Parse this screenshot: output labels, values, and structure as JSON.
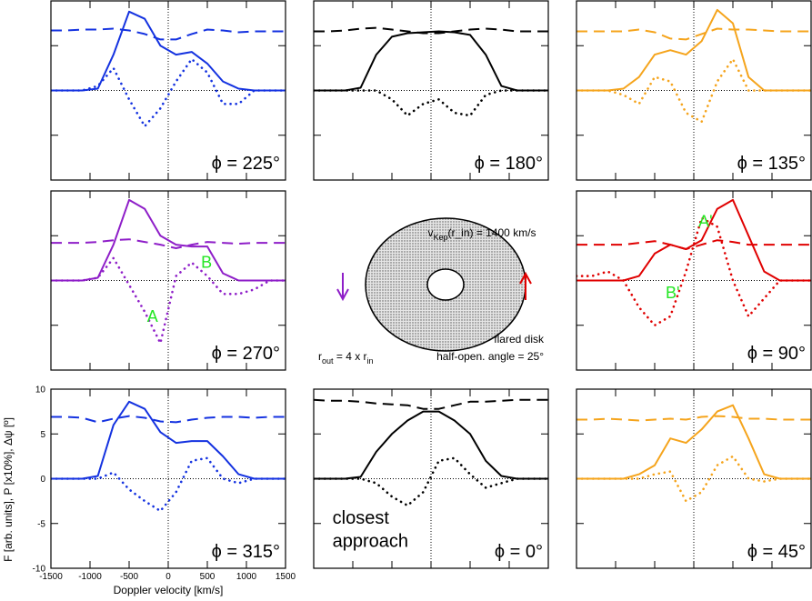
{
  "chart_data": [
    {
      "type": "line",
      "label": "ϕ = 225°",
      "x": [
        -1500,
        -1300,
        -1100,
        -900,
        -700,
        -500,
        -300,
        -100,
        100,
        300,
        500,
        700,
        900,
        1100,
        1300,
        1500
      ],
      "xlim": [
        -1500,
        1500
      ],
      "ylim": [
        -10,
        10
      ],
      "xticks": [
        -1500,
        -1000,
        -500,
        0,
        500,
        1000,
        1500
      ],
      "yticks": [
        -10,
        -5,
        0,
        5,
        10
      ],
      "series": [
        {
          "style": "solid",
          "color": "#1432e0",
          "values": [
            0,
            0,
            0,
            0.2,
            4,
            8.8,
            8,
            5,
            4,
            4.3,
            3,
            1,
            0.2,
            0,
            0,
            0
          ]
        },
        {
          "style": "dashed",
          "color": "#1432e0",
          "values": [
            6.7,
            6.7,
            6.8,
            6.8,
            6.9,
            6.7,
            6.3,
            5.7,
            5.7,
            6.3,
            6.8,
            6.7,
            6.5,
            6.6,
            6.6,
            6.6
          ]
        },
        {
          "style": "dotted",
          "color": "#1432e0",
          "values": [
            0,
            0,
            0,
            0.5,
            2.5,
            -1,
            -4,
            -2,
            1,
            3.5,
            2,
            -1.5,
            -1.5,
            0,
            0,
            0
          ]
        }
      ]
    },
    {
      "type": "line",
      "label": "ϕ = 180°",
      "x": [
        -1500,
        -1300,
        -1100,
        -900,
        -700,
        -500,
        -300,
        -100,
        100,
        300,
        500,
        700,
        900,
        1100,
        1300,
        1500
      ],
      "xlim": [
        -1500,
        1500
      ],
      "ylim": [
        -10,
        10
      ],
      "xticks": [
        -1500,
        -1000,
        -500,
        0,
        500,
        1000,
        1500
      ],
      "yticks": [
        -10,
        -5,
        0,
        5,
        10
      ],
      "series": [
        {
          "style": "solid",
          "color": "#000000",
          "values": [
            0,
            0,
            0,
            0.3,
            4,
            6,
            6.4,
            6.5,
            6.6,
            6.5,
            6.2,
            4,
            0.5,
            0,
            0,
            0
          ]
        },
        {
          "style": "dashed",
          "color": "#000000",
          "values": [
            6.6,
            6.6,
            6.7,
            6.9,
            7,
            6.8,
            6.6,
            6.4,
            6.4,
            6.6,
            6.8,
            6.9,
            6.8,
            6.6,
            6.6,
            6.6
          ]
        },
        {
          "style": "dotted",
          "color": "#000000",
          "values": [
            0,
            0,
            0,
            0,
            0,
            -1,
            -2.8,
            -1.5,
            -1,
            -2.5,
            -2.8,
            -0.5,
            0,
            0,
            0,
            0
          ]
        }
      ]
    },
    {
      "type": "line",
      "label": "ϕ = 135°",
      "x": [
        -1500,
        -1300,
        -1100,
        -900,
        -700,
        -500,
        -300,
        -100,
        100,
        300,
        500,
        700,
        900,
        1100,
        1300,
        1500
      ],
      "xlim": [
        -1500,
        1500
      ],
      "ylim": [
        -10,
        10
      ],
      "xticks": [
        -1500,
        -1000,
        -500,
        0,
        500,
        1000,
        1500
      ],
      "yticks": [
        -10,
        -5,
        0,
        5,
        10
      ],
      "series": [
        {
          "style": "solid",
          "color": "#f5a41c",
          "values": [
            0,
            0,
            0,
            0.2,
            1.5,
            4,
            4.5,
            4,
            5.5,
            9,
            7.5,
            1.5,
            0,
            0,
            0,
            0
          ]
        },
        {
          "style": "dashed",
          "color": "#f5a41c",
          "values": [
            6.6,
            6.6,
            6.6,
            6.6,
            6.8,
            6.5,
            5.8,
            5.7,
            6.3,
            6.9,
            6.8,
            6.8,
            6.7,
            6.6,
            6.6,
            6.6
          ]
        },
        {
          "style": "dotted",
          "color": "#f5a41c",
          "values": [
            0,
            0,
            0,
            -0.5,
            -1.5,
            1.5,
            1,
            -2.5,
            -3.5,
            1,
            3.5,
            0,
            0,
            0,
            0,
            0
          ]
        }
      ]
    },
    {
      "type": "line",
      "label": "ϕ = 270°",
      "annotations": [
        "B",
        "A"
      ],
      "x": [
        -1500,
        -1300,
        -1100,
        -900,
        -700,
        -500,
        -300,
        -100,
        100,
        300,
        500,
        700,
        900,
        1100,
        1300,
        1500
      ],
      "xlim": [
        -1500,
        1500
      ],
      "ylim": [
        -10,
        10
      ],
      "xticks": [
        -1500,
        -1000,
        -500,
        0,
        500,
        1000,
        1500
      ],
      "yticks": [
        -10,
        -5,
        0,
        5,
        10
      ],
      "series": [
        {
          "style": "solid",
          "color": "#8e1ec8",
          "values": [
            0,
            0,
            0,
            0.3,
            4,
            9,
            8,
            5,
            4,
            3.8,
            3.8,
            0.8,
            0,
            0,
            0,
            0
          ]
        },
        {
          "style": "dashed",
          "color": "#8e1ec8",
          "values": [
            4.2,
            4.2,
            4.2,
            4.3,
            4.5,
            4.6,
            4.3,
            4,
            3.6,
            4,
            4.3,
            4.2,
            4.1,
            4.2,
            4.2,
            4.2
          ]
        },
        {
          "style": "dotted",
          "color": "#8e1ec8",
          "values": [
            0,
            0,
            0,
            0.3,
            2.5,
            -0.5,
            -3.5,
            -7,
            0.5,
            2,
            0.5,
            -1.5,
            -1.5,
            -1,
            0,
            0
          ]
        }
      ]
    },
    {
      "type": "line",
      "label": "ϕ = 90°",
      "annotations": [
        "A'",
        "B'"
      ],
      "x": [
        -1500,
        -1300,
        -1100,
        -900,
        -700,
        -500,
        -300,
        -100,
        100,
        300,
        500,
        700,
        900,
        1100,
        1300,
        1500
      ],
      "xlim": [
        -1500,
        1500
      ],
      "ylim": [
        -10,
        10
      ],
      "xticks": [
        -1500,
        -1000,
        -500,
        0,
        500,
        1000,
        1500
      ],
      "yticks": [
        -10,
        -5,
        0,
        5,
        10
      ],
      "series": [
        {
          "style": "solid",
          "color": "#e00000",
          "values": [
            0,
            0,
            0,
            0,
            0.5,
            3,
            4,
            3.5,
            4.5,
            8,
            9,
            5,
            1,
            0,
            0,
            0
          ]
        },
        {
          "style": "dashed",
          "color": "#e00000",
          "values": [
            4,
            4,
            4,
            4,
            4.2,
            4.4,
            4,
            3.5,
            4,
            4.5,
            4.3,
            4,
            4,
            4,
            4,
            4
          ]
        },
        {
          "style": "dotted",
          "color": "#e00000",
          "values": [
            0.5,
            0.5,
            1,
            0,
            -3,
            -5,
            -4,
            1,
            7,
            6,
            0,
            -4,
            -2,
            0,
            0,
            0
          ]
        }
      ]
    },
    {
      "type": "line",
      "label": "ϕ = 315°",
      "xlabel": "Doppler velocity [km/s]",
      "ylabel": "F [arb. units], P [x10%], Δψ [º]",
      "x": [
        -1500,
        -1300,
        -1100,
        -900,
        -700,
        -500,
        -300,
        -100,
        100,
        300,
        500,
        700,
        900,
        1100,
        1300,
        1500
      ],
      "xlim": [
        -1500,
        1500
      ],
      "ylim": [
        -10,
        10
      ],
      "xticks": [
        -1500,
        -1000,
        -500,
        0,
        500,
        1000,
        1500
      ],
      "yticks": [
        -10,
        -5,
        0,
        5,
        10
      ],
      "series": [
        {
          "style": "solid",
          "color": "#1432e0",
          "values": [
            0,
            0,
            0,
            0.3,
            6,
            8.6,
            7.8,
            5.2,
            4,
            4.2,
            4.2,
            2.5,
            0.5,
            0,
            0,
            0
          ]
        },
        {
          "style": "dashed",
          "color": "#1432e0",
          "values": [
            6.9,
            6.9,
            6.8,
            6.3,
            6.7,
            7,
            6.8,
            6.4,
            6.3,
            6.6,
            6.8,
            6.9,
            6.9,
            6.8,
            6.9,
            6.9
          ]
        },
        {
          "style": "dotted",
          "color": "#1432e0",
          "values": [
            0,
            0,
            0,
            0,
            0.7,
            -1.2,
            -2.5,
            -3.6,
            -1.5,
            2,
            2.3,
            0,
            -0.5,
            0,
            0,
            0
          ]
        }
      ]
    },
    {
      "type": "line",
      "label": "ϕ = 0°",
      "annotations": [
        "closest",
        "approach"
      ],
      "x": [
        -1500,
        -1300,
        -1100,
        -900,
        -700,
        -500,
        -300,
        -100,
        100,
        300,
        500,
        700,
        900,
        1100,
        1300,
        1500
      ],
      "xlim": [
        -1500,
        1500
      ],
      "ylim": [
        -10,
        10
      ],
      "xticks": [
        -1500,
        -1000,
        -500,
        0,
        500,
        1000,
        1500
      ],
      "yticks": [
        -10,
        -5,
        0,
        5,
        10
      ],
      "series": [
        {
          "style": "solid",
          "color": "#000000",
          "values": [
            0,
            0,
            0,
            0.2,
            3,
            5,
            6.5,
            7.5,
            7.5,
            6.5,
            5,
            2,
            0.3,
            0,
            0,
            0
          ]
        },
        {
          "style": "dashed",
          "color": "#000000",
          "values": [
            8.8,
            8.7,
            8.7,
            8.6,
            8.4,
            8.3,
            8.2,
            7.8,
            7.8,
            8.2,
            8.6,
            8.6,
            8.7,
            8.8,
            8.8,
            8.8
          ]
        },
        {
          "style": "dotted",
          "color": "#000000",
          "values": [
            0,
            0,
            0,
            0,
            -0.5,
            -2,
            -3,
            -1.5,
            2,
            2.3,
            0.5,
            -1,
            -0.5,
            0,
            0,
            0
          ]
        }
      ]
    },
    {
      "type": "line",
      "label": "ϕ = 45°",
      "x": [
        -1500,
        -1300,
        -1100,
        -900,
        -700,
        -500,
        -300,
        -100,
        100,
        300,
        500,
        700,
        900,
        1100,
        1300,
        1500
      ],
      "xlim": [
        -1500,
        1500
      ],
      "ylim": [
        -10,
        10
      ],
      "xticks": [
        -1500,
        -1000,
        -500,
        0,
        500,
        1000,
        1500
      ],
      "yticks": [
        -10,
        -5,
        0,
        5,
        10
      ],
      "series": [
        {
          "style": "solid",
          "color": "#f5a41c",
          "values": [
            0,
            0,
            0,
            0,
            0.5,
            1.5,
            4.5,
            4,
            5.5,
            7.5,
            8.2,
            4.5,
            0.5,
            0,
            0,
            0
          ]
        },
        {
          "style": "dashed",
          "color": "#f5a41c",
          "values": [
            6.6,
            6.6,
            6.7,
            6.6,
            6.5,
            6.6,
            6.7,
            6.6,
            6.9,
            7,
            6.9,
            6.7,
            6.7,
            6.6,
            6.6,
            6.6
          ]
        },
        {
          "style": "dotted",
          "color": "#f5a41c",
          "values": [
            0,
            0,
            0,
            0,
            0,
            0.5,
            0.8,
            -2.5,
            -1.5,
            1.5,
            2.5,
            0,
            -0.3,
            0,
            0,
            0
          ]
        }
      ]
    }
  ],
  "diagram": {
    "velocity": [
      "v",
      "Kep",
      "(r_in) = 1400 km/s"
    ],
    "disk_label": "flared disk",
    "angle_label": "half-open. angle = 25°",
    "radius_label": [
      "r",
      "out",
      " = 4 x r",
      "in"
    ]
  }
}
